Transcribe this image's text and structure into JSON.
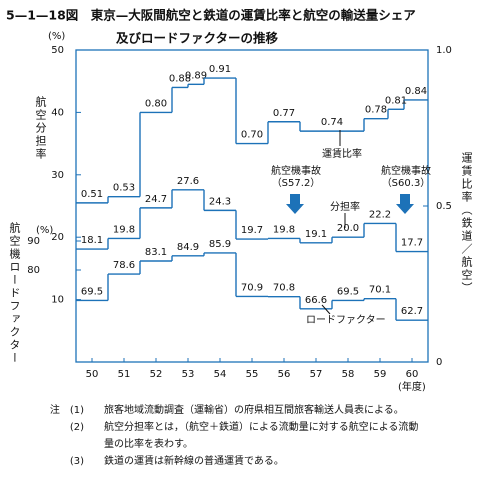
{
  "chart_data": {
    "type": "step-line",
    "title": "5—1—18図　東京—大阪間航空と鉄道の運賃比率と航空の輸送量シェア",
    "subtitle": "及びロードファクターの推移",
    "y_label": "航空分担率",
    "y_unit": "(%)",
    "y3_label": "航空機ロードファクター",
    "y3_unit": "(%)",
    "y2_label": "運賃比率（鉄道／航空）",
    "x_unit": "(年度)",
    "xlim": [
      49.5,
      60.5
    ],
    "xticks": [
      50,
      51,
      52,
      53,
      54,
      55,
      56,
      57,
      58,
      59,
      60
    ],
    "ylim": [
      0,
      50
    ],
    "yticks": [
      10,
      20,
      30,
      40,
      50
    ],
    "y2lim": [
      0,
      1
    ],
    "y2ticks": [
      0,
      0.5,
      {
        "value": 1,
        "label": "1.0"
      }
    ],
    "y3lim": [
      60,
      90
    ],
    "y3ticks": [
      80,
      90
    ],
    "color": "#1d72b8",
    "series": [
      {
        "name": "運賃比率",
        "axis": "y2",
        "x": [
          49.5,
          50.5,
          51.5,
          52.5,
          53,
          53.5,
          54.5,
          55.5,
          56.5,
          58.5,
          59.25,
          59.75
        ],
        "values": [
          0.51,
          0.53,
          0.8,
          0.88,
          0.89,
          0.91,
          0.7,
          0.77,
          0.74,
          0.78,
          0.81,
          0.84
        ],
        "value_labels": [
          "0.51",
          "0.53",
          "0.80",
          "0.88",
          "0.89",
          "0.91",
          "0.70",
          "0.77",
          "0.74",
          "0.78",
          "0.81",
          "0.84"
        ]
      },
      {
        "name": "分担率",
        "axis": "y",
        "x": [
          49.5,
          50.5,
          51.5,
          52.5,
          53.5,
          54.5,
          55.5,
          56.5,
          57.5,
          58.5,
          59.5
        ],
        "values": [
          18.1,
          19.8,
          24.7,
          27.6,
          24.3,
          19.7,
          19.8,
          19.1,
          20,
          22.2,
          17.7
        ],
        "value_labels": [
          "18.1",
          "19.8",
          "24.7",
          "27.6",
          "24.3",
          "19.7",
          "19.8",
          "19.1",
          "20.0",
          "22.2",
          "17.7"
        ]
      },
      {
        "name": "ロードファクター",
        "axis": "y3",
        "x": [
          49.5,
          50.5,
          51.5,
          52.5,
          53.5,
          54.5,
          55.5,
          56.5,
          57.5,
          58.5,
          59.5
        ],
        "values": [
          69.5,
          78.6,
          83.1,
          84.9,
          85.9,
          70.9,
          70.8,
          66.6,
          69.5,
          70.1,
          62.7
        ],
        "value_labels": [
          "69.5",
          "78.6",
          "83.1",
          "84.9",
          "85.9",
          "70.9",
          "70.8",
          "66.6",
          "69.5",
          "70.1",
          "62.7"
        ]
      }
    ],
    "annotations": [
      "航空機事故",
      "（S57.2）",
      "航空機事故",
      "（S60.3）"
    ],
    "notes": [
      {
        "mark": "注　(1)",
        "lines": [
          "旅客地域流動調査（運輸省）の府県相互間旅客輸送人員表による。"
        ]
      },
      {
        "mark": "(2)",
        "lines": [
          "航空分担率とは，（航空＋鉄道）による流動量に対する航空による流動",
          "量の比率を表わす。"
        ]
      },
      {
        "mark": "(3)",
        "lines": [
          "鉄道の運賃は新幹線の普通運賃である。"
        ]
      }
    ]
  }
}
